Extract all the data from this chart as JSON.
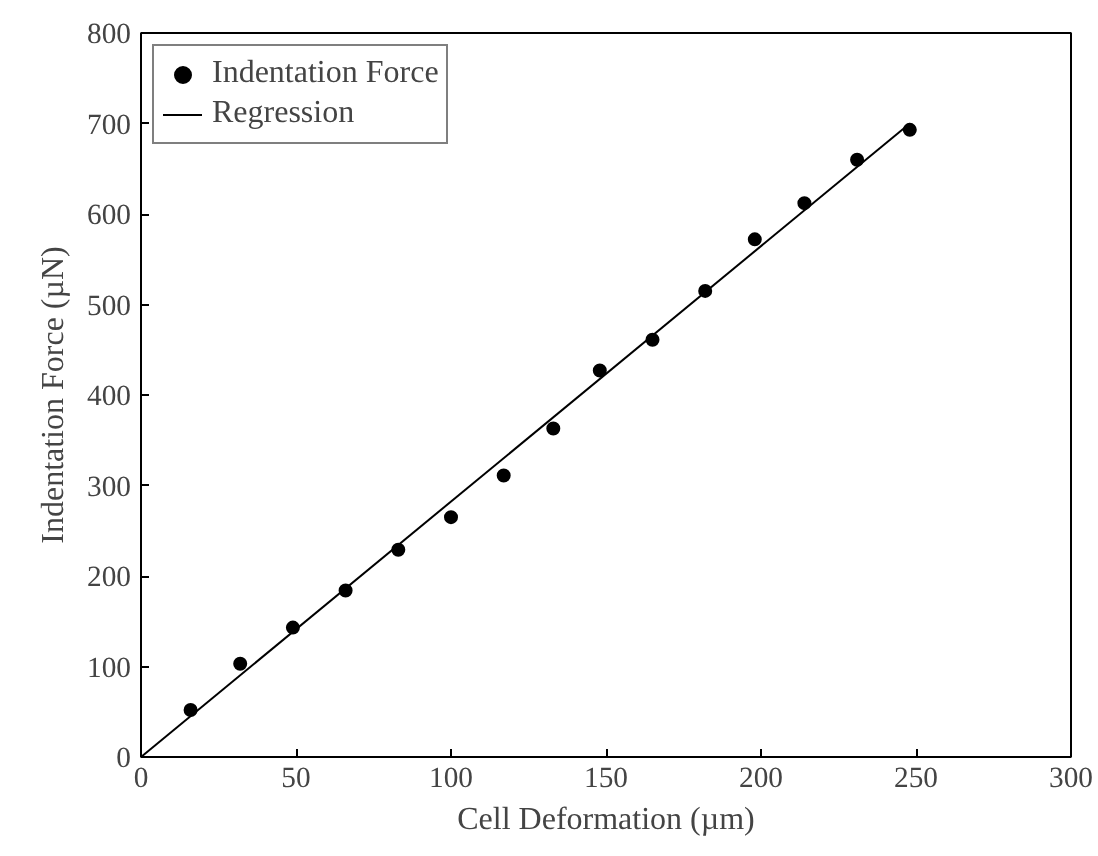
{
  "chart_data": {
    "type": "scatter",
    "xlabel": "Cell Deformation (µm)",
    "ylabel": "Indentation Force (µN)",
    "xlim": [
      0,
      300
    ],
    "ylim": [
      0,
      800
    ],
    "xticks": [
      0,
      50,
      100,
      150,
      200,
      250,
      300
    ],
    "yticks": [
      0,
      100,
      200,
      300,
      400,
      500,
      600,
      700,
      800
    ],
    "grid": false,
    "legend": "top left",
    "series": [
      {
        "name": "Indentation Force",
        "color": "#000000",
        "marker": "circle",
        "x": [
          16,
          32,
          49,
          66,
          83,
          100,
          117,
          133,
          148,
          165,
          182,
          198,
          214,
          231,
          248
        ],
        "values": [
          52,
          103,
          143,
          184,
          229,
          265,
          311,
          363,
          427,
          461,
          515,
          572,
          612,
          660,
          693
        ]
      },
      {
        "name": "Regression",
        "color": "#000000",
        "type": "line",
        "marker": "none",
        "line_style": "solid",
        "x": [
          0,
          248
        ],
        "values": [
          0,
          700
        ]
      }
    ]
  }
}
